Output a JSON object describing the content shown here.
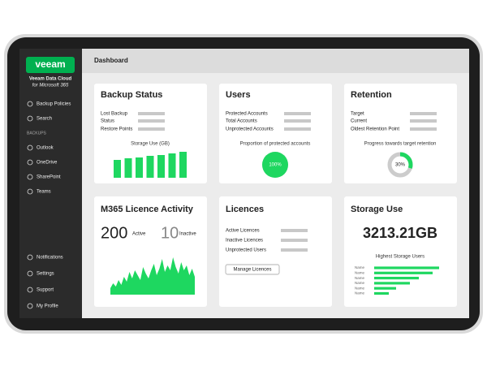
{
  "sidebar": {
    "logo": "veeam",
    "product": "Veeam Data Cloud",
    "product_sub": "for Microsoft 365",
    "menu_top": [
      "Backup Policies",
      "Search"
    ],
    "section": "BACKUPS",
    "backups": [
      "Outlook",
      "OneDrive",
      "SharePoint",
      "Teams"
    ],
    "menu_bottom": [
      "Notifications",
      "Settings",
      "Support",
      "My Profile"
    ]
  },
  "header": {
    "title": "Dashboard"
  },
  "backup_status": {
    "title": "Backup Status",
    "fields": [
      "Lost Backup",
      "Status",
      "Restore Points"
    ],
    "chart_title": "Storage Use (GB)",
    "bars": [
      22,
      24,
      25,
      27,
      28,
      30,
      32
    ]
  },
  "users": {
    "title": "Users",
    "fields": [
      "Protected Accounts",
      "Total Accounts",
      "Unprotected Accounts"
    ],
    "chart_title": "Proportion of protected accounts",
    "value": 100,
    "value_label": "100%"
  },
  "retention": {
    "title": "Retention",
    "fields": [
      "Target",
      "Current",
      "Oldest Retention Point"
    ],
    "chart_title": "Progress towards target retention",
    "value": 30,
    "value_label": "30%"
  },
  "licence_activity": {
    "title": "M365 Licence Activity",
    "active": 200,
    "active_label": "Active",
    "inactive": 10,
    "inactive_label": "Inactive",
    "series": [
      8,
      14,
      10,
      18,
      12,
      22,
      16,
      28,
      20,
      30,
      24,
      18,
      34,
      26,
      20,
      30,
      38,
      24,
      32,
      44,
      28,
      36,
      30,
      46,
      34,
      26,
      40,
      30,
      36,
      24,
      32,
      22
    ]
  },
  "licences": {
    "title": "Licences",
    "fields": [
      "Active Licences",
      "Inactive Licences",
      "Unprotected Users"
    ],
    "button": "Manage Licences"
  },
  "storage_use": {
    "title": "Storage Use",
    "total": "3213.21GB",
    "list_title": "Highest Storage Users",
    "names": [
      "Name",
      "Name",
      "Name",
      "Name",
      "Name",
      "Name"
    ],
    "values": [
      80,
      72,
      55,
      44,
      27,
      18
    ]
  }
}
